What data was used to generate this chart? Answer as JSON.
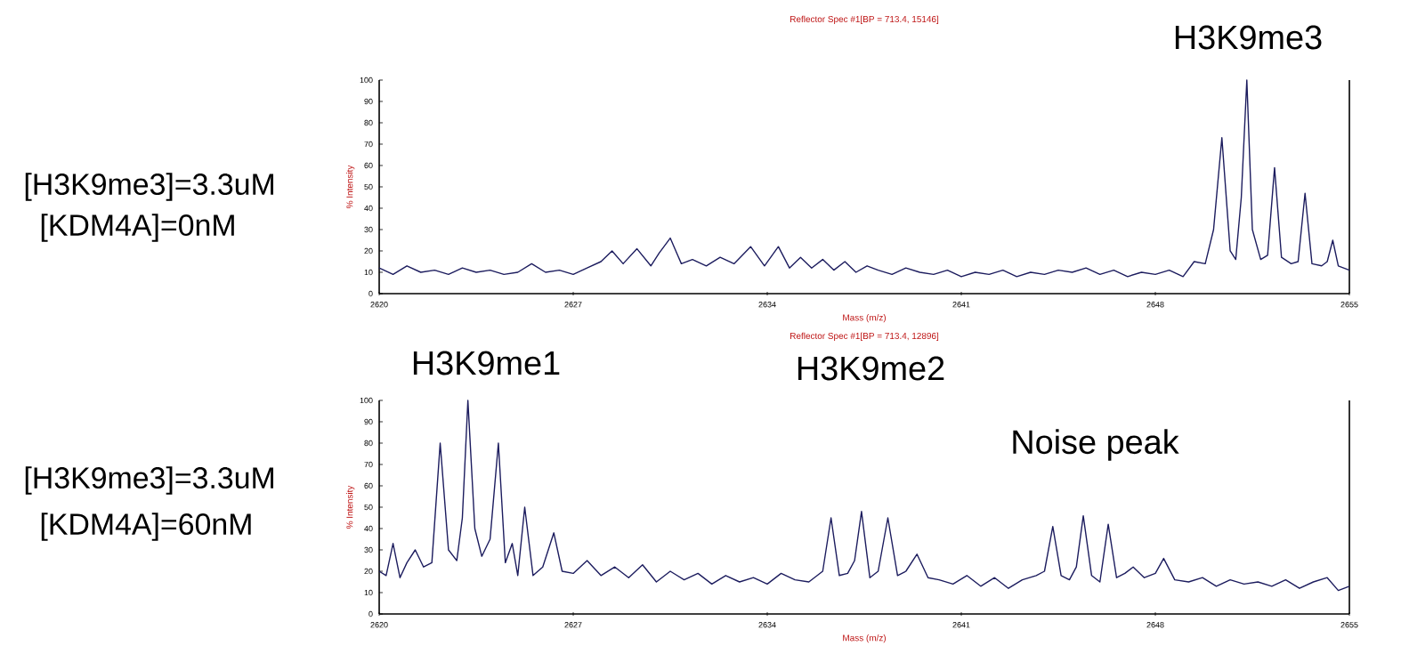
{
  "chart_data": [
    {
      "type": "line",
      "title": "Reflector Spec #1[BP = 713.4, 15146]",
      "xlabel": "Mass (m/z)",
      "ylabel": "% Intensity",
      "color": "#1c1c5e",
      "xlim": [
        2620,
        2655
      ],
      "xticks": [
        2620,
        2627,
        2634,
        2641,
        2648,
        2655
      ],
      "ylim": [
        0,
        100
      ],
      "yticks": [
        0,
        10,
        20,
        30,
        40,
        50,
        60,
        70,
        80,
        90,
        100
      ],
      "annotations": [
        "[H3K9me3]=3.3uM",
        "[KDM4A]=0nM",
        "H3K9me3"
      ],
      "x": [
        2620,
        2620.5,
        2621,
        2621.5,
        2622,
        2622.5,
        2623,
        2623.5,
        2624,
        2624.5,
        2625,
        2625.5,
        2626,
        2626.5,
        2627,
        2627.5,
        2628,
        2628.4,
        2628.8,
        2629.3,
        2629.8,
        2630.1,
        2630.5,
        2630.9,
        2631.3,
        2631.8,
        2632.3,
        2632.8,
        2633.4,
        2633.9,
        2634.4,
        2634.8,
        2635.2,
        2635.6,
        2636.0,
        2636.4,
        2636.8,
        2637.2,
        2637.6,
        2638,
        2638.5,
        2639,
        2639.5,
        2640,
        2640.5,
        2641,
        2641.5,
        2642,
        2642.5,
        2643,
        2643.5,
        2644,
        2644.5,
        2645,
        2645.5,
        2646,
        2646.5,
        2647,
        2647.5,
        2648,
        2648.5,
        2649,
        2649.4,
        2649.8,
        2650.1,
        2650.4,
        2650.7,
        2650.9,
        2651.1,
        2651.3,
        2651.5,
        2651.8,
        2652.05,
        2652.3,
        2652.55,
        2652.9,
        2653.15,
        2653.4,
        2653.65,
        2654.0,
        2654.2,
        2654.4,
        2654.6,
        2655
      ],
      "values": [
        12,
        9,
        13,
        10,
        11,
        9,
        12,
        10,
        11,
        9,
        10,
        14,
        10,
        11,
        9,
        12,
        15,
        20,
        14,
        21,
        13,
        19,
        26,
        14,
        16,
        13,
        17,
        14,
        22,
        13,
        22,
        12,
        17,
        12,
        16,
        11,
        15,
        10,
        13,
        11,
        9,
        12,
        10,
        9,
        11,
        8,
        10,
        9,
        11,
        8,
        10,
        9,
        11,
        10,
        12,
        9,
        11,
        8,
        10,
        9,
        11,
        8,
        15,
        14,
        30,
        73,
        20,
        16,
        45,
        100,
        30,
        16,
        18,
        59,
        17,
        14,
        15,
        47,
        14,
        13,
        15,
        25,
        13,
        11
      ]
    },
    {
      "type": "line",
      "title": "Reflector Spec #1[BP = 713.4, 12896]",
      "xlabel": "Mass (m/z)",
      "ylabel": "% Intensity",
      "color": "#1c1c5e",
      "xlim": [
        2620,
        2655
      ],
      "xticks": [
        2620,
        2627,
        2634,
        2641,
        2648,
        2655
      ],
      "ylim": [
        0,
        100
      ],
      "yticks": [
        0,
        10,
        20,
        30,
        40,
        50,
        60,
        70,
        80,
        90,
        100
      ],
      "annotations": [
        "[H3K9me3]=3.3uM",
        "[KDM4A]=60nM",
        "H3K9me1",
        "H3K9me2",
        "Noise peak"
      ],
      "x": [
        2620,
        2620.25,
        2620.5,
        2620.75,
        2621,
        2621.3,
        2621.6,
        2621.9,
        2622.2,
        2622.5,
        2622.8,
        2623.0,
        2623.2,
        2623.45,
        2623.7,
        2624.0,
        2624.3,
        2624.55,
        2624.8,
        2625.0,
        2625.25,
        2625.55,
        2625.9,
        2626.3,
        2626.6,
        2627,
        2627.5,
        2628,
        2628.5,
        2629,
        2629.5,
        2630,
        2630.5,
        2631,
        2631.5,
        2632,
        2632.5,
        2633,
        2633.5,
        2634,
        2634.5,
        2635,
        2635.5,
        2636,
        2636.3,
        2636.6,
        2636.9,
        2637.15,
        2637.4,
        2637.7,
        2638.0,
        2638.35,
        2638.7,
        2639.0,
        2639.4,
        2639.8,
        2640.2,
        2640.7,
        2641.2,
        2641.7,
        2642.2,
        2642.7,
        2643.2,
        2643.7,
        2644.0,
        2644.3,
        2644.6,
        2644.9,
        2645.15,
        2645.4,
        2645.7,
        2646.0,
        2646.3,
        2646.6,
        2646.9,
        2647.2,
        2647.6,
        2648.0,
        2648.3,
        2648.7,
        2649.2,
        2649.7,
        2650.2,
        2650.7,
        2651.2,
        2651.7,
        2652.2,
        2652.7,
        2653.2,
        2653.7,
        2654.2,
        2654.6,
        2655
      ],
      "values": [
        20,
        18,
        33,
        17,
        24,
        30,
        22,
        24,
        80,
        30,
        25,
        45,
        100,
        40,
        27,
        35,
        80,
        24,
        33,
        18,
        50,
        18,
        22,
        38,
        20,
        19,
        25,
        18,
        22,
        17,
        23,
        15,
        20,
        16,
        19,
        14,
        18,
        15,
        17,
        14,
        19,
        16,
        15,
        20,
        45,
        18,
        19,
        25,
        48,
        17,
        20,
        45,
        18,
        20,
        28,
        17,
        16,
        14,
        18,
        13,
        17,
        12,
        16,
        18,
        20,
        41,
        18,
        16,
        22,
        46,
        18,
        15,
        42,
        17,
        19,
        22,
        17,
        19,
        26,
        16,
        15,
        17,
        13,
        16,
        14,
        15,
        13,
        16,
        12,
        15,
        17,
        11,
        13
      ]
    }
  ]
}
